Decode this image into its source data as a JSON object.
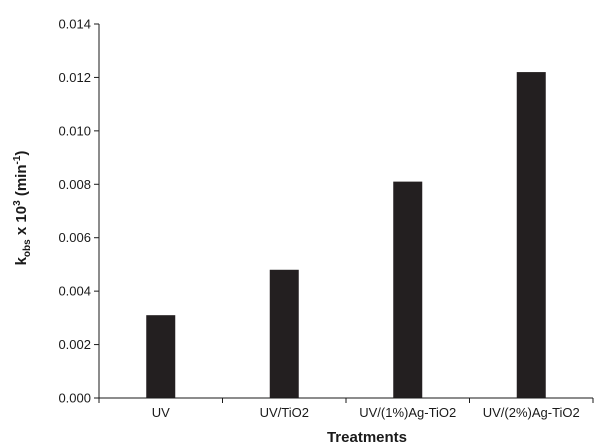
{
  "chart_data": {
    "type": "bar",
    "categories": [
      "UV",
      "UV/TiO2",
      "UV/(1%)Ag-TiO2",
      "UV/(2%)Ag-TiO2"
    ],
    "values": [
      0.0031,
      0.0048,
      0.0081,
      0.0122
    ],
    "xlabel": "Treatments",
    "ylabel": {
      "base": "k",
      "base_sub": "obs",
      "mid": " x 10",
      "mid_sup": "3",
      "unit_pre": " (min",
      "unit_sup": "-1",
      "unit_post": ")"
    },
    "ylim": [
      0,
      0.014
    ],
    "yticks": [
      "0.000",
      "0.002",
      "0.004",
      "0.006",
      "0.008",
      "0.010",
      "0.012",
      "0.014"
    ],
    "grid": false,
    "legend": "none",
    "bar_color": "#231f20"
  }
}
